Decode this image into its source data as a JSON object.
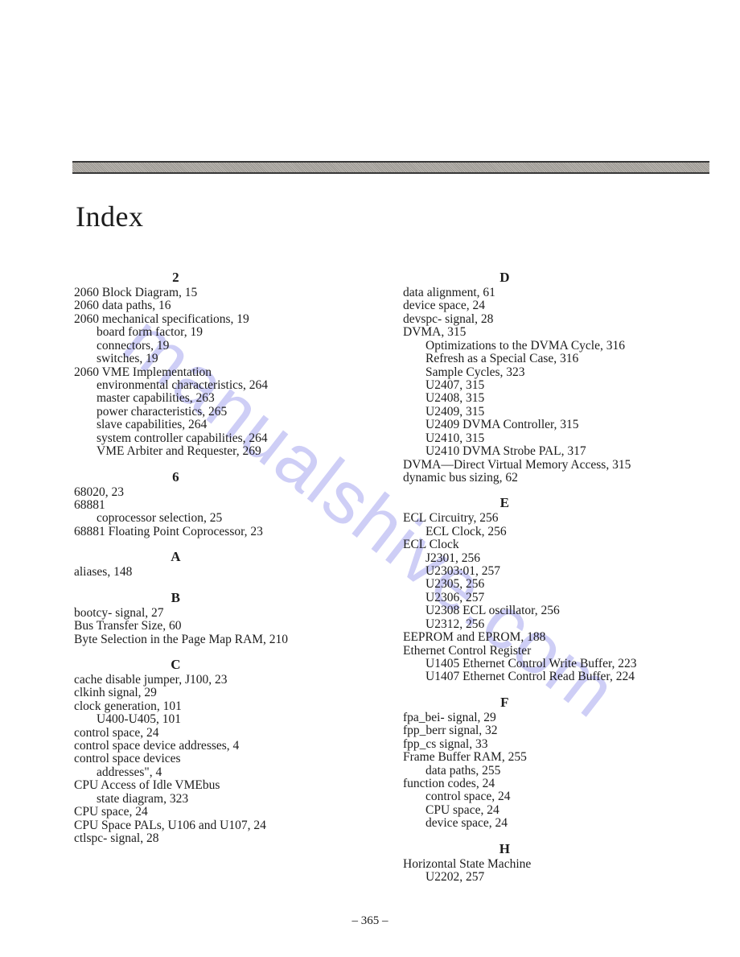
{
  "page": {
    "title": "Index",
    "page_number": "– 365 –",
    "watermark": "manualshive.com",
    "rule_color_dark": "#2a2a2a",
    "rule_color_light": "#c9c5bf",
    "text_color": "#1c1c1c",
    "background_color": "#ffffff",
    "watermark_color": "rgba(120,120,230,0.36)",
    "font_family": "Times New Roman",
    "title_fontsize": 36,
    "body_fontsize": 15.5,
    "heading_fontsize": 17
  },
  "left_column": [
    {
      "type": "head",
      "text": "2"
    },
    {
      "type": "e0",
      "text": "2060 Block Diagram, 15"
    },
    {
      "type": "e0",
      "text": "2060 data paths, 16"
    },
    {
      "type": "e0",
      "text": "2060 mechanical specifications, 19"
    },
    {
      "type": "e1",
      "text": "board form factor, 19"
    },
    {
      "type": "e1",
      "text": "connectors, 19"
    },
    {
      "type": "e1",
      "text": "switches, 19"
    },
    {
      "type": "e0",
      "text": "2060 VME Implementation"
    },
    {
      "type": "e1",
      "text": "environmental characteristics, 264"
    },
    {
      "type": "e1",
      "text": "master capabilities, 263"
    },
    {
      "type": "e1",
      "text": "power characteristics, 265"
    },
    {
      "type": "e1",
      "text": "slave capabilities, 264"
    },
    {
      "type": "e1",
      "text": "system controller capabilities, 264"
    },
    {
      "type": "e1",
      "text": "VME Arbiter and Requester, 269"
    },
    {
      "type": "head",
      "text": "6"
    },
    {
      "type": "e0",
      "text": "68020, 23"
    },
    {
      "type": "e0",
      "text": "68881"
    },
    {
      "type": "e1",
      "text": "coprocessor selection, 25"
    },
    {
      "type": "e0",
      "text": "68881 Floating Point Coprocessor, 23"
    },
    {
      "type": "head",
      "text": "A"
    },
    {
      "type": "e0",
      "text": "aliases, 148"
    },
    {
      "type": "head",
      "text": "B"
    },
    {
      "type": "e0",
      "text": "bootcy- signal, 27"
    },
    {
      "type": "e0",
      "text": "Bus Transfer Size, 60"
    },
    {
      "type": "e0",
      "text": "Byte Selection in the Page Map RAM, 210"
    },
    {
      "type": "head",
      "text": "C"
    },
    {
      "type": "e0",
      "text": "cache disable jumper, J100, 23"
    },
    {
      "type": "e0",
      "text": "clkinh signal, 29"
    },
    {
      "type": "e0",
      "text": "clock generation, 101"
    },
    {
      "type": "e1",
      "text": "U400-U405, 101"
    },
    {
      "type": "e0",
      "text": "control space, 24"
    },
    {
      "type": "e0",
      "text": "control space device addresses, 4"
    },
    {
      "type": "e0",
      "text": "control space devices"
    },
    {
      "type": "e1",
      "text": "addresses\", 4"
    },
    {
      "type": "e0",
      "text": "CPU Access of Idle VMEbus"
    },
    {
      "type": "e1",
      "text": "state diagram, 323"
    },
    {
      "type": "e0",
      "text": "CPU space, 24"
    },
    {
      "type": "e0",
      "text": "CPU Space PALs, U106 and U107, 24"
    },
    {
      "type": "e0",
      "text": "ctlspc- signal, 28"
    }
  ],
  "right_column": [
    {
      "type": "head",
      "text": "D"
    },
    {
      "type": "e0",
      "text": "data alignment, 61"
    },
    {
      "type": "e0",
      "text": "device space, 24"
    },
    {
      "type": "e0",
      "text": "devspc- signal, 28"
    },
    {
      "type": "e0",
      "text": "DVMA, 315"
    },
    {
      "type": "e1",
      "text": "Optimizations to the DVMA Cycle, 316"
    },
    {
      "type": "e1",
      "text": "Refresh as a Special Case, 316"
    },
    {
      "type": "e1",
      "text": "Sample Cycles, 323"
    },
    {
      "type": "e1",
      "text": "U2407, 315"
    },
    {
      "type": "e1",
      "text": "U2408, 315"
    },
    {
      "type": "e1",
      "text": "U2409, 315"
    },
    {
      "type": "e1",
      "text": "U2409 DVMA Controller, 315"
    },
    {
      "type": "e1",
      "text": "U2410, 315"
    },
    {
      "type": "e1",
      "text": "U2410 DVMA Strobe PAL, 317"
    },
    {
      "type": "e0",
      "text": "DVMA—Direct Virtual Memory Access, 315"
    },
    {
      "type": "e0",
      "text": "dynamic bus sizing, 62"
    },
    {
      "type": "head",
      "text": "E"
    },
    {
      "type": "e0",
      "text": "ECL Circuitry, 256"
    },
    {
      "type": "e1",
      "text": "ECL Clock, 256"
    },
    {
      "type": "e0",
      "text": "ECL Clock"
    },
    {
      "type": "e1",
      "text": "J2301, 256"
    },
    {
      "type": "e1",
      "text": "U2303:01, 257"
    },
    {
      "type": "e1",
      "text": "U2305, 256"
    },
    {
      "type": "e1",
      "text": "U2306, 257"
    },
    {
      "type": "e1",
      "text": "U2308 ECL oscillator, 256"
    },
    {
      "type": "e1",
      "text": "U2312, 256"
    },
    {
      "type": "e0",
      "text": "EEPROM and EPROM, 188"
    },
    {
      "type": "e0",
      "text": "Ethernet Control Register"
    },
    {
      "type": "e1",
      "text": "U1405 Ethernet Control Write Buffer, 223"
    },
    {
      "type": "e1",
      "text": "U1407 Ethernet Control Read Buffer, 224"
    },
    {
      "type": "head",
      "text": "F"
    },
    {
      "type": "e0",
      "text": "fpa_bei- signal, 29"
    },
    {
      "type": "e0",
      "text": "fpp_berr signal, 32"
    },
    {
      "type": "e0",
      "text": "fpp_cs signal, 33"
    },
    {
      "type": "e0",
      "text": "Frame Buffer RAM, 255"
    },
    {
      "type": "e1",
      "text": "data paths, 255"
    },
    {
      "type": "e0",
      "text": "function codes, 24"
    },
    {
      "type": "e1",
      "text": "control space, 24"
    },
    {
      "type": "e1",
      "text": "CPU space, 24"
    },
    {
      "type": "e1",
      "text": "device space, 24"
    },
    {
      "type": "head",
      "text": "H"
    },
    {
      "type": "e0",
      "text": "Horizontal State Machine"
    },
    {
      "type": "e1",
      "text": "U2202, 257"
    }
  ]
}
